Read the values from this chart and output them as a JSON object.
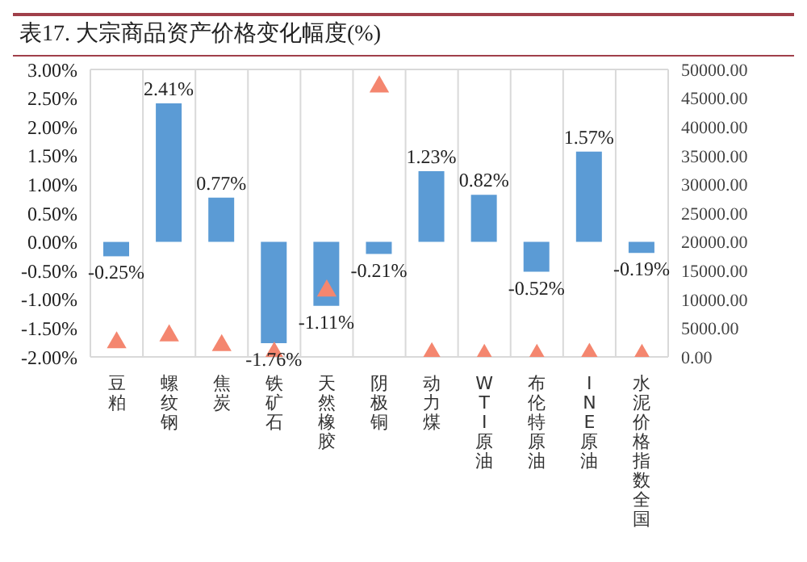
{
  "chart_data": {
    "type": "bar",
    "title": "表17. 大宗商品资产价格变化幅度(%)",
    "categories": [
      "豆粕",
      "螺纹钢",
      "焦炭",
      "铁矿石",
      "天然橡胶",
      "阴极铜",
      "动力煤",
      "WTI原油",
      "布伦特原油",
      "INE原油",
      "水泥价格指数全国"
    ],
    "series": [
      {
        "color": "#5b9bd5",
        "values": [
          -0.25,
          2.41,
          0.77,
          -1.76,
          -1.11,
          -0.21,
          1.23,
          0.82,
          -0.52,
          1.57,
          -0.19
        ],
        "value_labels": [
          "-0.25%",
          "2.41%",
          "0.77%",
          "-1.76%",
          "-1.11%",
          "-0.21%",
          "1.23%",
          "0.82%",
          "-0.52%",
          "1.57%",
          "-0.19%"
        ]
      },
      {
        "type": "scatter",
        "axis": "y2",
        "color": "#f4866f",
        "marker": "triangle",
        "values": [
          2500,
          3700,
          2000,
          700,
          11500,
          47000,
          600,
          300,
          300,
          500,
          300
        ]
      }
    ],
    "ylim": [
      -2,
      3
    ],
    "yticks": [
      {
        "value": -2,
        "label": "-2.00%"
      },
      {
        "value": -1.5,
        "label": "-1.50%"
      },
      {
        "value": -1,
        "label": "-1.00%"
      },
      {
        "value": -0.5,
        "label": "-0.50%"
      },
      {
        "value": 0,
        "label": "0.00%"
      },
      {
        "value": 0.5,
        "label": "0.50%"
      },
      {
        "value": 1,
        "label": "1.00%"
      },
      {
        "value": 1.5,
        "label": "1.50%"
      },
      {
        "value": 2,
        "label": "2.00%"
      },
      {
        "value": 2.5,
        "label": "2.50%"
      },
      {
        "value": 3,
        "label": "3.00%"
      }
    ],
    "y2lim": [
      0,
      50000
    ],
    "y2ticks": [
      {
        "value": 0,
        "label": "0.00"
      },
      {
        "value": 5000,
        "label": "5000.00"
      },
      {
        "value": 10000,
        "label": "10000.00"
      },
      {
        "value": 15000,
        "label": "15000.00"
      },
      {
        "value": 20000,
        "label": "20000.00"
      },
      {
        "value": 25000,
        "label": "25000.00"
      },
      {
        "value": 30000,
        "label": "30000.00"
      },
      {
        "value": 35000,
        "label": "35000.00"
      },
      {
        "value": 40000,
        "label": "40000.00"
      },
      {
        "value": 45000,
        "label": "45000.00"
      },
      {
        "value": 50000,
        "label": "50000.00"
      }
    ],
    "grid": true,
    "legend": false
  }
}
